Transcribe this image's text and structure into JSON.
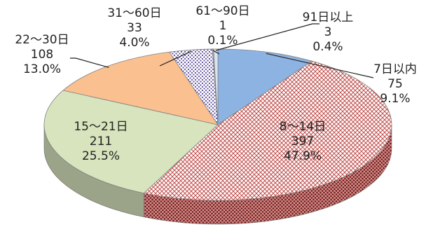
{
  "chart_data": {
    "type": "pie",
    "title": "",
    "style": "3d",
    "series": [
      {
        "category": "7日以内",
        "count": "75",
        "percent": "9.1%",
        "value": 9.1,
        "color": "#8db3e2",
        "pattern": "none"
      },
      {
        "category": "8～14日",
        "count": "397",
        "percent": "47.9%",
        "value": 47.9,
        "color": "#c0504d",
        "pattern": "red-crosshatch"
      },
      {
        "category": "15～21日",
        "count": "211",
        "percent": "25.5%",
        "value": 25.5,
        "color": "#d7e4bd",
        "pattern": "none"
      },
      {
        "category": "22～30日",
        "count": "108",
        "percent": "13.0%",
        "value": 13.0,
        "color": "#fac090",
        "pattern": "none"
      },
      {
        "category": "31～60日",
        "count": "33",
        "percent": "4.0%",
        "value": 4.0,
        "color": "#8064a2",
        "pattern": "purple-dots"
      },
      {
        "category": "61～90日",
        "count": "1",
        "percent": "0.1%",
        "value": 0.1,
        "color": "#8db3e2",
        "pattern": "none"
      },
      {
        "category": "91日以上",
        "count": "3",
        "percent": "0.4%",
        "value": 0.4,
        "color": "#dbe5f1",
        "pattern": "none"
      }
    ]
  }
}
